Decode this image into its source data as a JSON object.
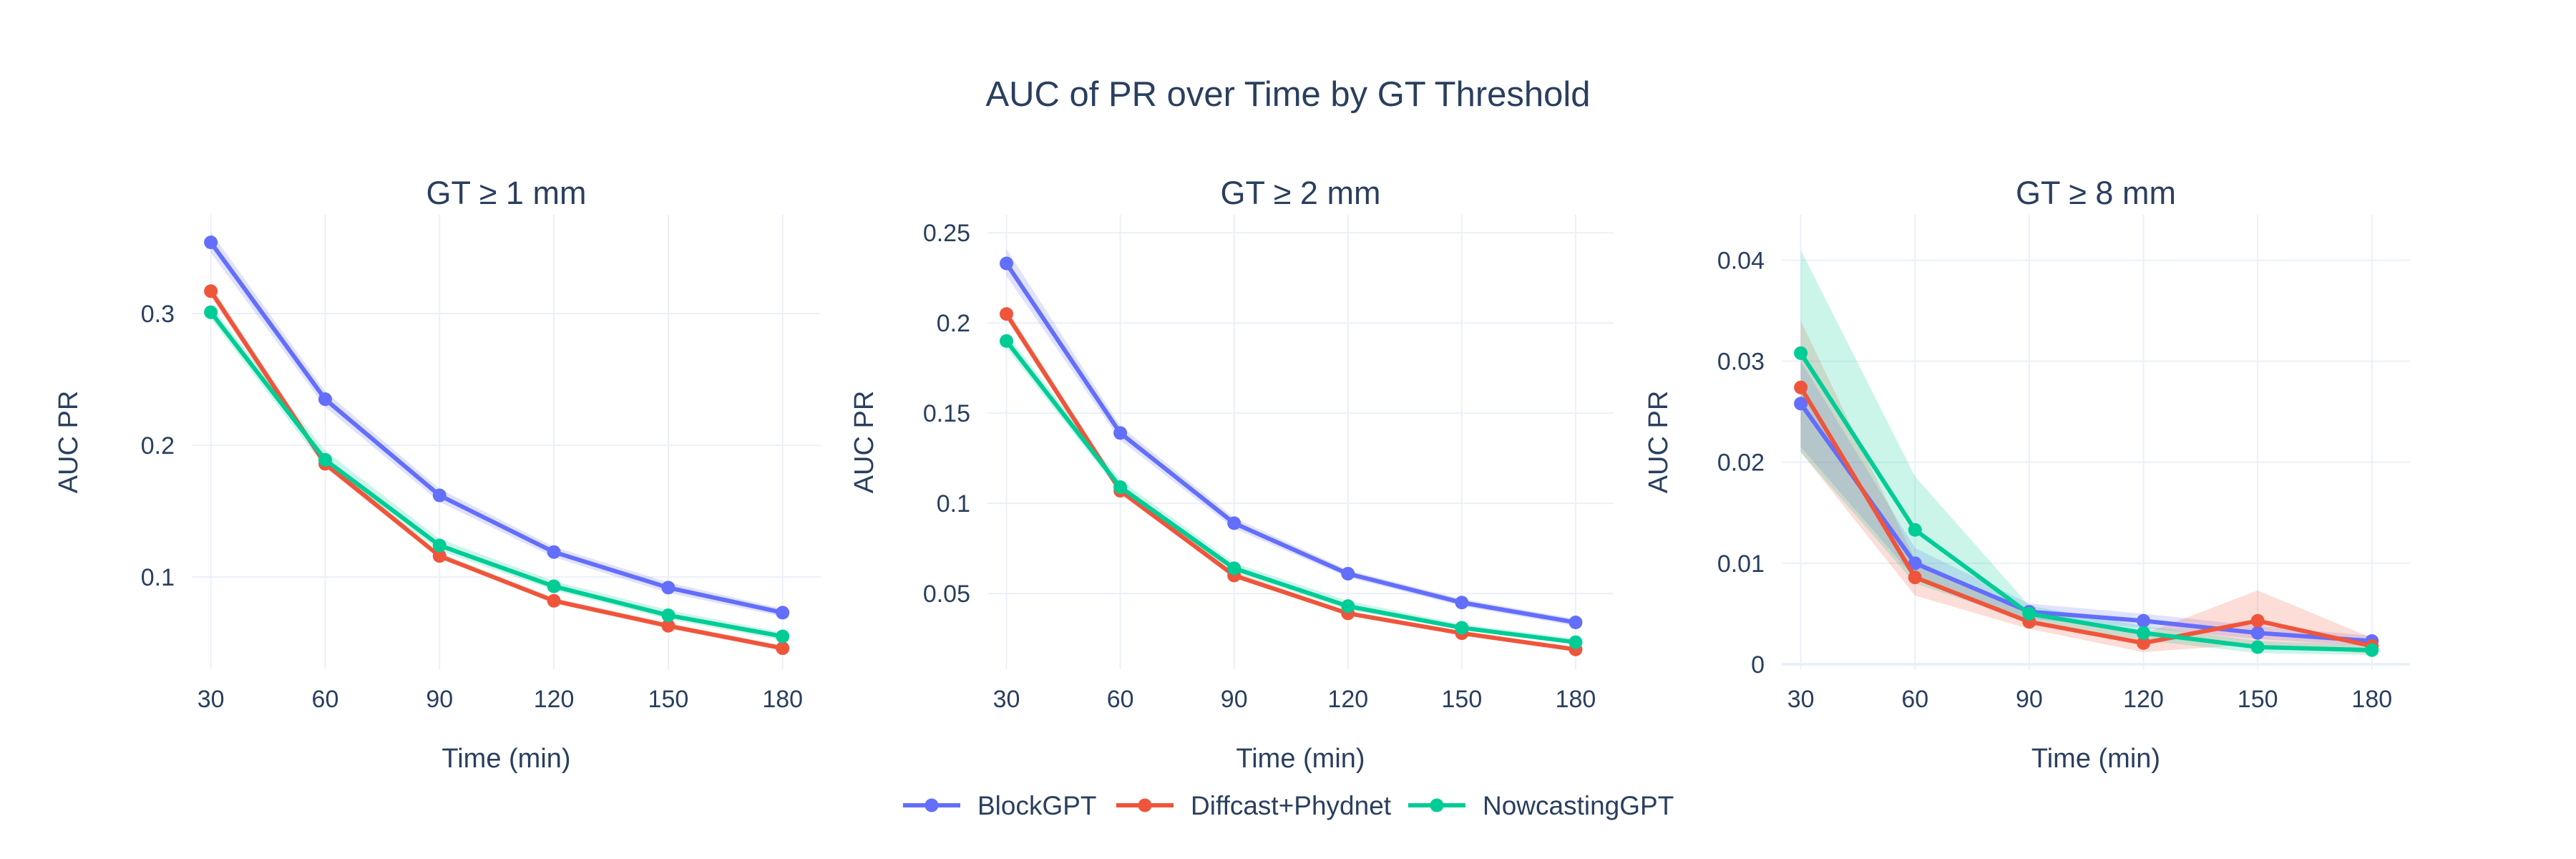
{
  "title": "AUC of PR over Time by GT Threshold",
  "colors": {
    "grid": "#ebf0f8",
    "text": "#2a3f5f",
    "series": {
      "BlockGPT": "#636efa",
      "Diffcast+Phydnet": "#ef553b",
      "NowcastingGPT": "#00cc96"
    }
  },
  "legend": {
    "placement": "bottom-center",
    "items": [
      {
        "label": "BlockGPT"
      },
      {
        "label": "Diffcast+Phydnet"
      },
      {
        "label": "NowcastingGPT"
      }
    ]
  },
  "chart_data": [
    {
      "type": "line",
      "title": "GT ≥ 1 mm",
      "xlabel": "Time (min)",
      "ylabel": "AUC PR",
      "x": [
        30,
        60,
        90,
        120,
        150,
        180
      ],
      "xlim": [
        25,
        190
      ],
      "ylim": [
        0.03,
        0.375
      ],
      "yticks": [
        0.1,
        0.2,
        0.3
      ],
      "yticklabels": [
        "0.1",
        "0.2",
        "0.3"
      ],
      "series": [
        {
          "name": "BlockGPT",
          "values": [
            0.354,
            0.235,
            0.162,
            0.119,
            0.092,
            0.073
          ],
          "lower": [
            0.346,
            0.229,
            0.157,
            0.115,
            0.088,
            0.07
          ],
          "upper": [
            0.362,
            0.241,
            0.167,
            0.123,
            0.096,
            0.076
          ]
        },
        {
          "name": "Diffcast+Phydnet",
          "values": [
            0.317,
            0.186,
            0.116,
            0.082,
            0.063,
            0.046
          ],
          "lower": [
            0.313,
            0.183,
            0.114,
            0.08,
            0.061,
            0.044
          ],
          "upper": [
            0.321,
            0.189,
            0.118,
            0.084,
            0.065,
            0.048
          ]
        },
        {
          "name": "NowcastingGPT",
          "values": [
            0.301,
            0.189,
            0.124,
            0.093,
            0.071,
            0.055
          ],
          "lower": [
            0.296,
            0.183,
            0.12,
            0.09,
            0.068,
            0.052
          ],
          "upper": [
            0.306,
            0.196,
            0.129,
            0.097,
            0.075,
            0.058
          ]
        }
      ]
    },
    {
      "type": "line",
      "title": "GT ≥ 2 mm",
      "xlabel": "Time (min)",
      "ylabel": "AUC PR",
      "x": [
        30,
        60,
        90,
        120,
        150,
        180
      ],
      "xlim": [
        25,
        190
      ],
      "ylim": [
        0.008,
        0.26
      ],
      "yticks": [
        0.05,
        0.1,
        0.15,
        0.2,
        0.25
      ],
      "yticklabels": [
        "0.05",
        "0.1",
        "0.15",
        "0.2",
        "0.25"
      ],
      "series": [
        {
          "name": "BlockGPT",
          "values": [
            0.233,
            0.139,
            0.089,
            0.061,
            0.045,
            0.034
          ],
          "lower": [
            0.226,
            0.135,
            0.086,
            0.059,
            0.043,
            0.032
          ],
          "upper": [
            0.241,
            0.143,
            0.092,
            0.063,
            0.047,
            0.036
          ]
        },
        {
          "name": "Diffcast+Phydnet",
          "values": [
            0.205,
            0.107,
            0.06,
            0.039,
            0.028,
            0.019
          ],
          "lower": [
            0.202,
            0.105,
            0.059,
            0.038,
            0.027,
            0.018
          ],
          "upper": [
            0.208,
            0.109,
            0.062,
            0.04,
            0.029,
            0.02
          ]
        },
        {
          "name": "NowcastingGPT",
          "values": [
            0.19,
            0.109,
            0.064,
            0.043,
            0.031,
            0.023
          ],
          "lower": [
            0.186,
            0.106,
            0.062,
            0.041,
            0.03,
            0.022
          ],
          "upper": [
            0.194,
            0.113,
            0.067,
            0.046,
            0.033,
            0.025
          ]
        }
      ]
    },
    {
      "type": "line",
      "title": "GT ≥ 8 mm",
      "xlabel": "Time (min)",
      "ylabel": "AUC PR",
      "x": [
        30,
        60,
        90,
        120,
        150,
        180
      ],
      "xlim": [
        25,
        190
      ],
      "ylim": [
        -0.0005,
        0.0445
      ],
      "yticks": [
        0,
        0.01,
        0.02,
        0.03,
        0.04
      ],
      "yticklabels": [
        "0",
        "0.01",
        "0.02",
        "0.03",
        "0.04"
      ],
      "series": [
        {
          "name": "BlockGPT",
          "values": [
            0.0258,
            0.01,
            0.0052,
            0.0043,
            0.0031,
            0.0023
          ],
          "lower": [
            0.0215,
            0.0085,
            0.0045,
            0.0036,
            0.0025,
            0.0018
          ],
          "upper": [
            0.03,
            0.0115,
            0.006,
            0.005,
            0.0038,
            0.0028
          ]
        },
        {
          "name": "Diffcast+Phydnet",
          "values": [
            0.0274,
            0.0086,
            0.0042,
            0.0021,
            0.0043,
            0.0018
          ],
          "lower": [
            0.021,
            0.0068,
            0.0035,
            0.0012,
            0.002,
            0.001
          ],
          "upper": [
            0.034,
            0.0104,
            0.005,
            0.003,
            0.0073,
            0.0026
          ]
        },
        {
          "name": "NowcastingGPT",
          "values": [
            0.0308,
            0.0133,
            0.005,
            0.0031,
            0.0017,
            0.0014
          ],
          "lower": [
            0.021,
            0.008,
            0.0042,
            0.0024,
            0.0011,
            0.0009
          ],
          "upper": [
            0.041,
            0.0186,
            0.0058,
            0.0038,
            0.0023,
            0.0019
          ]
        }
      ]
    }
  ]
}
